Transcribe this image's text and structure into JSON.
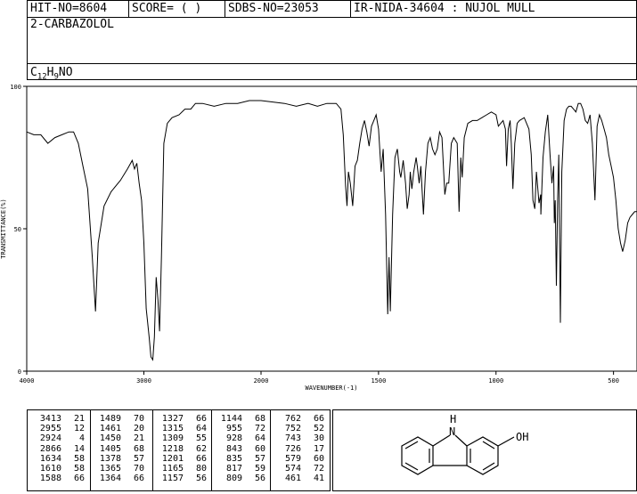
{
  "header": {
    "hit_no": "HIT-NO=8604",
    "score": "SCORE=  (   )",
    "sdbs_no": "SDBS-NO=23053",
    "ir_nida": "IR-NIDA-34604 : NUJOL MULL",
    "compound_name": "2-CARBAZOLOL",
    "formula": {
      "c": "C",
      "c_n": "12",
      "h": "H",
      "h_n": "9",
      "rest": "NO"
    }
  },
  "chart_data": {
    "type": "line",
    "xlabel": "WAVENUMBER(-1)",
    "ylabel": "TRANSMITTANCE(%)",
    "xlim": [
      4000,
      400
    ],
    "ylim": [
      0,
      100
    ],
    "x_ticks": [
      4000,
      3000,
      2000,
      1500,
      1000,
      500
    ],
    "y_ticks": [
      0,
      50,
      100
    ],
    "series": [
      {
        "points": [
          [
            4000,
            84
          ],
          [
            3940,
            83
          ],
          [
            3880,
            83
          ],
          [
            3820,
            80
          ],
          [
            3760,
            82
          ],
          [
            3700,
            83
          ],
          [
            3640,
            84
          ],
          [
            3600,
            84
          ],
          [
            3560,
            80
          ],
          [
            3520,
            72
          ],
          [
            3480,
            64
          ],
          [
            3440,
            40
          ],
          [
            3413,
            21
          ],
          [
            3390,
            45
          ],
          [
            3340,
            58
          ],
          [
            3280,
            63
          ],
          [
            3200,
            67
          ],
          [
            3140,
            71
          ],
          [
            3100,
            74
          ],
          [
            3080,
            71
          ],
          [
            3060,
            73
          ],
          [
            3040,
            66
          ],
          [
            3020,
            60
          ],
          [
            3000,
            45
          ],
          [
            2980,
            22
          ],
          [
            2955,
            12
          ],
          [
            2940,
            5
          ],
          [
            2924,
            4
          ],
          [
            2910,
            12
          ],
          [
            2895,
            33
          ],
          [
            2880,
            25
          ],
          [
            2866,
            14
          ],
          [
            2850,
            40
          ],
          [
            2830,
            80
          ],
          [
            2800,
            87
          ],
          [
            2760,
            89
          ],
          [
            2700,
            90
          ],
          [
            2650,
            92
          ],
          [
            2600,
            92
          ],
          [
            2560,
            94
          ],
          [
            2500,
            94
          ],
          [
            2400,
            93
          ],
          [
            2300,
            94
          ],
          [
            2200,
            94
          ],
          [
            2100,
            95
          ],
          [
            2000,
            95
          ],
          [
            1900,
            94
          ],
          [
            1850,
            93
          ],
          [
            1800,
            94
          ],
          [
            1760,
            93
          ],
          [
            1720,
            94
          ],
          [
            1680,
            94
          ],
          [
            1660,
            92
          ],
          [
            1650,
            83
          ],
          [
            1640,
            65
          ],
          [
            1634,
            58
          ],
          [
            1628,
            70
          ],
          [
            1620,
            66
          ],
          [
            1610,
            58
          ],
          [
            1600,
            72
          ],
          [
            1590,
            74
          ],
          [
            1580,
            80
          ],
          [
            1570,
            85
          ],
          [
            1560,
            88
          ],
          [
            1550,
            84
          ],
          [
            1540,
            79
          ],
          [
            1530,
            86
          ],
          [
            1520,
            88
          ],
          [
            1510,
            90
          ],
          [
            1500,
            85
          ],
          [
            1489,
            70
          ],
          [
            1480,
            78
          ],
          [
            1470,
            55
          ],
          [
            1461,
            20
          ],
          [
            1455,
            40
          ],
          [
            1450,
            21
          ],
          [
            1440,
            55
          ],
          [
            1430,
            75
          ],
          [
            1420,
            78
          ],
          [
            1410,
            70
          ],
          [
            1405,
            68
          ],
          [
            1395,
            74
          ],
          [
            1385,
            66
          ],
          [
            1378,
            57
          ],
          [
            1370,
            62
          ],
          [
            1365,
            70
          ],
          [
            1358,
            64
          ],
          [
            1350,
            70
          ],
          [
            1340,
            75
          ],
          [
            1335,
            72
          ],
          [
            1327,
            66
          ],
          [
            1320,
            72
          ],
          [
            1315,
            64
          ],
          [
            1309,
            55
          ],
          [
            1300,
            70
          ],
          [
            1290,
            80
          ],
          [
            1280,
            82
          ],
          [
            1270,
            78
          ],
          [
            1260,
            76
          ],
          [
            1250,
            78
          ],
          [
            1240,
            84
          ],
          [
            1230,
            82
          ],
          [
            1218,
            62
          ],
          [
            1210,
            66
          ],
          [
            1201,
            66
          ],
          [
            1190,
            80
          ],
          [
            1180,
            82
          ],
          [
            1165,
            80
          ],
          [
            1157,
            56
          ],
          [
            1150,
            75
          ],
          [
            1144,
            68
          ],
          [
            1135,
            82
          ],
          [
            1120,
            87
          ],
          [
            1100,
            88
          ],
          [
            1080,
            88
          ],
          [
            1060,
            89
          ],
          [
            1040,
            90
          ],
          [
            1020,
            91
          ],
          [
            1000,
            90
          ],
          [
            990,
            86
          ],
          [
            980,
            87
          ],
          [
            970,
            88
          ],
          [
            960,
            85
          ],
          [
            955,
            72
          ],
          [
            948,
            85
          ],
          [
            940,
            88
          ],
          [
            935,
            80
          ],
          [
            928,
            64
          ],
          [
            920,
            80
          ],
          [
            910,
            87
          ],
          [
            900,
            88
          ],
          [
            880,
            89
          ],
          [
            860,
            85
          ],
          [
            850,
            76
          ],
          [
            843,
            60
          ],
          [
            835,
            57
          ],
          [
            828,
            70
          ],
          [
            817,
            59
          ],
          [
            810,
            62
          ],
          [
            809,
            55
          ],
          [
            800,
            75
          ],
          [
            790,
            84
          ],
          [
            780,
            90
          ],
          [
            770,
            76
          ],
          [
            762,
            66
          ],
          [
            755,
            72
          ],
          [
            752,
            52
          ],
          [
            748,
            60
          ],
          [
            743,
            30
          ],
          [
            738,
            60
          ],
          [
            733,
            76
          ],
          [
            726,
            17
          ],
          [
            720,
            70
          ],
          [
            710,
            88
          ],
          [
            700,
            92
          ],
          [
            690,
            93
          ],
          [
            680,
            93
          ],
          [
            670,
            92
          ],
          [
            660,
            91
          ],
          [
            650,
            94
          ],
          [
            640,
            94
          ],
          [
            630,
            92
          ],
          [
            620,
            88
          ],
          [
            610,
            87
          ],
          [
            600,
            90
          ],
          [
            590,
            80
          ],
          [
            579,
            60
          ],
          [
            570,
            86
          ],
          [
            560,
            90
          ],
          [
            550,
            88
          ],
          [
            540,
            85
          ],
          [
            530,
            82
          ],
          [
            520,
            76
          ],
          [
            510,
            72
          ],
          [
            500,
            68
          ],
          [
            490,
            60
          ],
          [
            480,
            50
          ],
          [
            470,
            45
          ],
          [
            461,
            42
          ],
          [
            450,
            46
          ],
          [
            440,
            52
          ],
          [
            430,
            54
          ],
          [
            420,
            55
          ],
          [
            410,
            56
          ],
          [
            400,
            56
          ]
        ]
      }
    ],
    "peak_table": [
      [
        [
          3413,
          21
        ],
        [
          2955,
          12
        ],
        [
          2924,
          4
        ],
        [
          2866,
          14
        ],
        [
          1634,
          58
        ],
        [
          1610,
          58
        ],
        [
          1588,
          66
        ]
      ],
      [
        [
          1489,
          70
        ],
        [
          1461,
          20
        ],
        [
          1450,
          21
        ],
        [
          1405,
          68
        ],
        [
          1378,
          57
        ],
        [
          1365,
          70
        ],
        [
          1364,
          66
        ]
      ],
      [
        [
          1327,
          66
        ],
        [
          1315,
          64
        ],
        [
          1309,
          55
        ],
        [
          1218,
          62
        ],
        [
          1201,
          66
        ],
        [
          1165,
          80
        ],
        [
          1157,
          56
        ]
      ],
      [
        [
          1144,
          68
        ],
        [
          955,
          72
        ],
        [
          928,
          64
        ],
        [
          843,
          60
        ],
        [
          835,
          57
        ],
        [
          817,
          59
        ],
        [
          809,
          56
        ]
      ],
      [
        [
          762,
          66
        ],
        [
          752,
          52
        ],
        [
          743,
          30
        ],
        [
          726,
          17
        ],
        [
          579,
          60
        ],
        [
          574,
          72
        ],
        [
          461,
          41
        ]
      ]
    ]
  },
  "structure": {
    "nh_label": "H",
    "n_label": "N",
    "oh_label": "OH"
  }
}
